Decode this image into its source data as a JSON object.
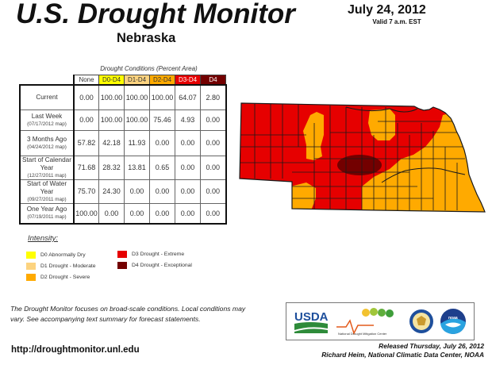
{
  "header": {
    "title": "U.S. Drought Monitor",
    "state": "Nebraska",
    "date": "July 24, 2012",
    "valid": "Valid 7 a.m. EST"
  },
  "table": {
    "caption": "Drought Conditions (Percent Area)",
    "columns": [
      {
        "label": "None",
        "bg": "#ffffff",
        "fg": "#333333"
      },
      {
        "label": "D0-D4",
        "bg": "#ffff00",
        "fg": "#333333"
      },
      {
        "label": "D1-D4",
        "bg": "#fcd37f",
        "fg": "#333333"
      },
      {
        "label": "D2-D4",
        "bg": "#ffaa00",
        "fg": "#333333"
      },
      {
        "label": "D3-D4",
        "bg": "#e60000",
        "fg": "#ffffff"
      },
      {
        "label": "D4",
        "bg": "#730000",
        "fg": "#ffffff"
      }
    ],
    "rows": [
      {
        "label": "Current",
        "sub": "",
        "values": [
          "0.00",
          "100.00",
          "100.00",
          "100.00",
          "64.07",
          "2.80"
        ]
      },
      {
        "label": "Last Week",
        "sub": "(07/17/2012 map)",
        "values": [
          "0.00",
          "100.00",
          "100.00",
          "75.46",
          "4.93",
          "0.00"
        ]
      },
      {
        "label": "3 Months Ago",
        "sub": "(04/24/2012 map)",
        "values": [
          "57.82",
          "42.18",
          "11.93",
          "0.00",
          "0.00",
          "0.00"
        ]
      },
      {
        "label": "Start of Calendar Year",
        "sub": "(12/27/2011 map)",
        "values": [
          "71.68",
          "28.32",
          "13.81",
          "0.65",
          "0.00",
          "0.00"
        ]
      },
      {
        "label": "Start of Water Year",
        "sub": "(09/27/2011 map)",
        "values": [
          "75.70",
          "24.30",
          "0.00",
          "0.00",
          "0.00",
          "0.00"
        ]
      },
      {
        "label": "One Year Ago",
        "sub": "(07/19/2011 map)",
        "values": [
          "100.00",
          "0.00",
          "0.00",
          "0.00",
          "0.00",
          "0.00"
        ]
      }
    ]
  },
  "legend": {
    "title": "Intensity:",
    "items": [
      {
        "label": "D0 Abnormally Dry",
        "color": "#ffff00"
      },
      {
        "label": "D1 Drought - Moderate",
        "color": "#fcd37f"
      },
      {
        "label": "D2 Drought - Severe",
        "color": "#ffaa00"
      },
      {
        "label": "D3 Drought - Extreme",
        "color": "#e60000"
      },
      {
        "label": "D4 Drought - Exceptional",
        "color": "#730000"
      }
    ]
  },
  "footer": {
    "note": "The Drought Monitor focuses on broad-scale conditions. Local conditions may vary. See accompanying text summary for forecast statements.",
    "url": "http://droughtmonitor.unl.edu",
    "released": "Released Thursday, July 26, 2012",
    "author": "Richard Heim, National Climatic Data Center, NOAA"
  },
  "logos": [
    {
      "name": "USDA",
      "text": "USDA"
    },
    {
      "name": "National Drought Mitigation Center",
      "text": "National Drought Mitigation Center"
    },
    {
      "name": "Department of Commerce seal",
      "text": ""
    },
    {
      "name": "NOAA",
      "text": "NOAA"
    }
  ],
  "map": {
    "colors": {
      "d2": "#ffaa00",
      "d3": "#e60000",
      "d4": "#730000",
      "border": "#1a1a1a"
    }
  }
}
